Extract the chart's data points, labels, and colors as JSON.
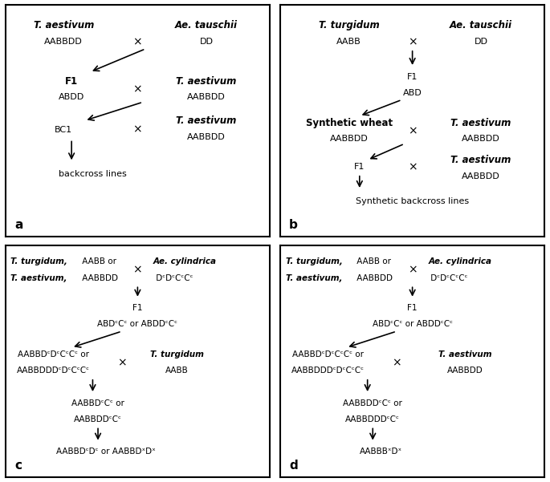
{
  "bg_color": "#ffffff",
  "panels": {
    "a": {
      "label": "a",
      "top_left_bold": "T. aestivum",
      "top_left_sub": "AABBDD",
      "top_right_bold": "Ae. tauschii",
      "top_right_sub": "DD",
      "mid_left_bold": "F1",
      "mid_left_sub": "ABDD",
      "mid_right_bold": "T. aestivum",
      "mid_right_sub": "AABBDD",
      "low_left_sub": "BC1",
      "low_right_bold": "T. aestivum",
      "low_right_sub": "AABBDD",
      "bottom_sub": "backcross lines"
    },
    "b": {
      "label": "b",
      "top_left_bold": "T. turgidum",
      "top_left_sub": "AABB",
      "top_right_bold": "Ae. tauschii",
      "top_right_sub": "DD",
      "f1_label": "F1",
      "f1_sub": "ABD",
      "synth_bold": "Synthetic wheat",
      "synth_sub": "AABBDD",
      "synth_right_bold": "T. aestivum",
      "synth_right_sub": "AABBDD",
      "f1b_label": "F1",
      "f1b_right_bold": "T. aestivum",
      "f1b_right_sub": "AABBDD",
      "bottom_sub": "Synthetic backcross lines"
    },
    "c": {
      "label": "c",
      "hdr_left1_italic": "T. turgidum,",
      "hdr_left1_plain": " AABB or",
      "hdr_left2_italic": "T. aestivum,",
      "hdr_left2_plain": " AABBDD",
      "hdr_right_italic": "Ae. cylindrica",
      "hdr_right_plain": " DᶜDᶜCᶜCᶜ",
      "f1_label": "F1",
      "f1_sub": "ABDᶜCᶜ or ABDDᶜCᶜ",
      "mid_line1": "AABBDᶜDᶜCᶜCᶜ or",
      "mid_line2": "AABBDDDᶜDᶜCᶜCᶜ",
      "mid_right_italic": "T. turgidum",
      "mid_right_plain": "AABB",
      "res_line1": "AABBDᶜCᶜ or",
      "res_line2": "AABBDDᶜCᶜ",
      "final": "AABBDᶜDᶜ or AABBDˣDˣ"
    },
    "d": {
      "label": "d",
      "hdr_left1_italic": "T. turgidum,",
      "hdr_left1_plain": " AABB or",
      "hdr_left2_italic": "T. aestivum,",
      "hdr_left2_plain": " AABBDD",
      "hdr_right_italic": "Ae. cylindrica",
      "hdr_right_plain": " DᶜDᶜCᶜCᶜ",
      "f1_label": "F1",
      "f1_sub": "ABDᶜCᶜ or ABDDᶜCᶜ",
      "mid_line1": "AABBDᶜDᶜCᶜCᶜ or",
      "mid_line2": "AABBDDDᶜDᶜCᶜCᶜ",
      "mid_right_italic": "T. aestivum",
      "mid_right_plain": "AABBDD",
      "res_line1": "AABBDDᶜCᶜ or",
      "res_line2": "AABBDDDᶜCᶜ",
      "final": "AABBBˣDˣ"
    }
  }
}
